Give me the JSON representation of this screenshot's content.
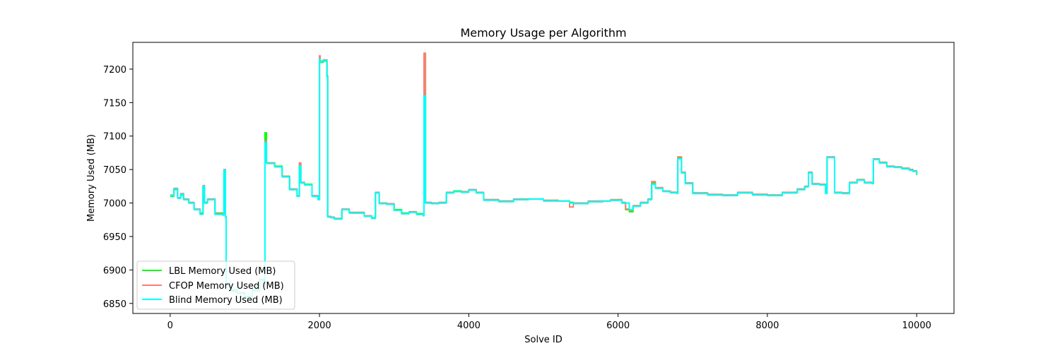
{
  "chart_data": {
    "type": "line",
    "title": "Memory Usage per Algorithm",
    "xlabel": "Solve ID",
    "ylabel": "Memory Used (MB)",
    "xlim": [
      -500,
      10500
    ],
    "ylim": [
      6835,
      7240
    ],
    "xticks": [
      0,
      2000,
      4000,
      6000,
      8000,
      10000
    ],
    "yticks": [
      6850,
      6900,
      6950,
      7000,
      7050,
      7100,
      7150,
      7200
    ],
    "grid": false,
    "legend_position": "lower-left",
    "series": [
      {
        "name": "LBL Memory Used (MB)",
        "color": "#00ff00",
        "x": [
          0,
          50,
          100,
          140,
          180,
          250,
          320,
          400,
          440,
          460,
          500,
          600,
          700,
          720,
          740,
          750,
          800,
          900,
          1000,
          1100,
          1200,
          1250,
          1270,
          1290,
          1300,
          1400,
          1500,
          1600,
          1700,
          1730,
          1750,
          1800,
          1900,
          1980,
          2000,
          2010,
          2050,
          2100,
          2110,
          2150,
          2200,
          2300,
          2400,
          2600,
          2700,
          2750,
          2800,
          2900,
          3000,
          3100,
          3200,
          3300,
          3390,
          3400,
          3420,
          3500,
          3600,
          3700,
          3800,
          3900,
          4000,
          4100,
          4200,
          4400,
          4600,
          4800,
          5000,
          5200,
          5350,
          5400,
          5600,
          5800,
          5900,
          6000,
          6050,
          6100,
          6150,
          6200,
          6300,
          6400,
          6450,
          6500,
          6600,
          6700,
          6790,
          6800,
          6850,
          6900,
          7000,
          7200,
          7400,
          7600,
          7800,
          8000,
          8200,
          8400,
          8500,
          8550,
          8600,
          8700,
          8780,
          8800,
          8900,
          9000,
          9100,
          9200,
          9300,
          9400,
          9420,
          9500,
          9600,
          9700,
          9800,
          9900,
          9950,
          10000
        ],
        "y": [
          7010,
          7020,
          7008,
          7012,
          7005,
          7000,
          6990,
          6985,
          7025,
          7000,
          7005,
          6985,
          6983,
          7048,
          6980,
          6880,
          6870,
          6865,
          6860,
          6870,
          6885,
          6880,
          7105,
          7060,
          7060,
          7055,
          7040,
          7020,
          7010,
          7058,
          7030,
          7028,
          7010,
          7005,
          7218,
          7210,
          7212,
          7190,
          6980,
          6978,
          6976,
          6990,
          6985,
          6980,
          6978,
          7015,
          7000,
          6998,
          6990,
          6985,
          6986,
          6984,
          6982,
          7222,
          7000,
          7000,
          7000,
          7015,
          7018,
          7016,
          7020,
          7015,
          7005,
          7003,
          7005,
          7006,
          7004,
          7003,
          7001,
          7000,
          7002,
          7003,
          7004,
          7005,
          7000,
          6990,
          6987,
          6995,
          7000,
          7005,
          7030,
          7022,
          7018,
          7016,
          7015,
          7068,
          7045,
          7030,
          7015,
          7012,
          7012,
          7015,
          7013,
          7012,
          7015,
          7020,
          7025,
          7045,
          7028,
          7028,
          7015,
          7068,
          7015,
          7015,
          7030,
          7035,
          7030,
          7030,
          7065,
          7060,
          7055,
          7054,
          7052,
          7050,
          7048,
          7042
        ]
      },
      {
        "name": "CFOP Memory Used (MB)",
        "color": "#fa8072",
        "x": [
          0,
          50,
          100,
          140,
          180,
          250,
          320,
          400,
          440,
          460,
          500,
          600,
          700,
          720,
          740,
          750,
          800,
          900,
          1000,
          1100,
          1200,
          1250,
          1270,
          1290,
          1300,
          1400,
          1500,
          1600,
          1700,
          1730,
          1750,
          1800,
          1900,
          1980,
          2000,
          2010,
          2050,
          2100,
          2110,
          2150,
          2200,
          2300,
          2400,
          2600,
          2700,
          2750,
          2800,
          2900,
          3000,
          3100,
          3200,
          3300,
          3390,
          3400,
          3420,
          3500,
          3600,
          3700,
          3800,
          3900,
          4000,
          4100,
          4200,
          4400,
          4600,
          4800,
          5000,
          5200,
          5350,
          5400,
          5600,
          5800,
          5900,
          6000,
          6050,
          6100,
          6150,
          6200,
          6300,
          6400,
          6450,
          6500,
          6600,
          6700,
          6790,
          6800,
          6850,
          6900,
          7000,
          7200,
          7400,
          7600,
          7800,
          8000,
          8200,
          8400,
          8500,
          8550,
          8600,
          8700,
          8780,
          8800,
          8900,
          9000,
          9100,
          9200,
          9300,
          9400,
          9420,
          9500,
          9600,
          9700,
          9800,
          9900,
          9950,
          10000
        ],
        "y": [
          7012,
          7022,
          7008,
          7014,
          7006,
          7001,
          6991,
          6984,
          7026,
          7001,
          7006,
          6984,
          6982,
          7050,
          6979,
          6878,
          6868,
          6866,
          6858,
          6869,
          6886,
          6879,
          7092,
          7060,
          7060,
          7054,
          7040,
          7021,
          7011,
          7060,
          7031,
          7027,
          7011,
          7006,
          7220,
          7212,
          7214,
          7189,
          6980,
          6979,
          6977,
          6991,
          6986,
          6981,
          6977,
          7016,
          7000,
          6999,
          6989,
          6984,
          6987,
          6983,
          6981,
          7224,
          7001,
          7000,
          7001,
          7016,
          7017,
          7017,
          7020,
          7016,
          7005,
          7003,
          7006,
          7006,
          7004,
          7003,
          6994,
          7000,
          7003,
          7003,
          7005,
          7005,
          7001,
          6991,
          6989,
          6996,
          7001,
          7006,
          7032,
          7023,
          7018,
          7016,
          7015,
          7069,
          7046,
          7030,
          7015,
          7013,
          7012,
          7016,
          7013,
          7012,
          7016,
          7021,
          7025,
          7046,
          7029,
          7028,
          7015,
          7069,
          7016,
          7015,
          7031,
          7035,
          7031,
          7030,
          7066,
          7061,
          7055,
          7054,
          7052,
          7050,
          7048,
          7043
        ]
      },
      {
        "name": "Blind Memory Used (MB)",
        "color": "#00ffff",
        "x": [
          0,
          50,
          100,
          140,
          180,
          250,
          320,
          400,
          440,
          460,
          500,
          600,
          700,
          720,
          740,
          750,
          800,
          900,
          1000,
          1100,
          1200,
          1250,
          1270,
          1290,
          1300,
          1400,
          1500,
          1600,
          1700,
          1730,
          1750,
          1800,
          1900,
          1980,
          2000,
          2010,
          2050,
          2100,
          2110,
          2150,
          2200,
          2300,
          2400,
          2600,
          2700,
          2750,
          2800,
          2900,
          3000,
          3100,
          3200,
          3300,
          3390,
          3400,
          3420,
          3500,
          3600,
          3700,
          3800,
          3900,
          4000,
          4100,
          4200,
          4400,
          4600,
          4800,
          5000,
          5200,
          5350,
          5400,
          5600,
          5800,
          5900,
          6000,
          6050,
          6100,
          6150,
          6200,
          6300,
          6400,
          6450,
          6500,
          6600,
          6700,
          6790,
          6800,
          6850,
          6900,
          7000,
          7200,
          7400,
          7600,
          7800,
          8000,
          8200,
          8400,
          8500,
          8550,
          8600,
          8700,
          8780,
          8800,
          8900,
          9000,
          9100,
          9200,
          9300,
          9400,
          9420,
          9500,
          9600,
          9700,
          9800,
          9900,
          9950,
          10000
        ],
        "y": [
          7011,
          7021,
          7007,
          7013,
          7005,
          7000,
          6990,
          6983,
          7025,
          7000,
          7005,
          6983,
          6982,
          7049,
          6979,
          6879,
          6869,
          6865,
          6859,
          6870,
          6885,
          6880,
          7090,
          7060,
          7059,
          7054,
          7039,
          7020,
          7010,
          7055,
          7030,
          7027,
          7010,
          7005,
          7215,
          7211,
          7213,
          7188,
          6979,
          6978,
          6976,
          6990,
          6985,
          6980,
          6977,
          7015,
          6999,
          6998,
          6989,
          6984,
          6986,
          6983,
          6981,
          7160,
          7000,
          6999,
          7000,
          7015,
          7017,
          7016,
          7019,
          7015,
          7004,
          7002,
          7005,
          7006,
          7003,
          7003,
          7000,
          6999,
          7002,
          7003,
          7004,
          7004,
          7000,
          7000,
          6990,
          6995,
          7000,
          7005,
          7028,
          7022,
          7017,
          7015,
          7014,
          7066,
          7045,
          7029,
          7014,
          7012,
          7011,
          7015,
          7012,
          7011,
          7015,
          7020,
          7024,
          7045,
          7028,
          7027,
          7014,
          7068,
          7015,
          7014,
          7030,
          7034,
          7030,
          7029,
          7065,
          7060,
          7054,
          7053,
          7051,
          7049,
          7047,
          7043
        ]
      }
    ]
  }
}
